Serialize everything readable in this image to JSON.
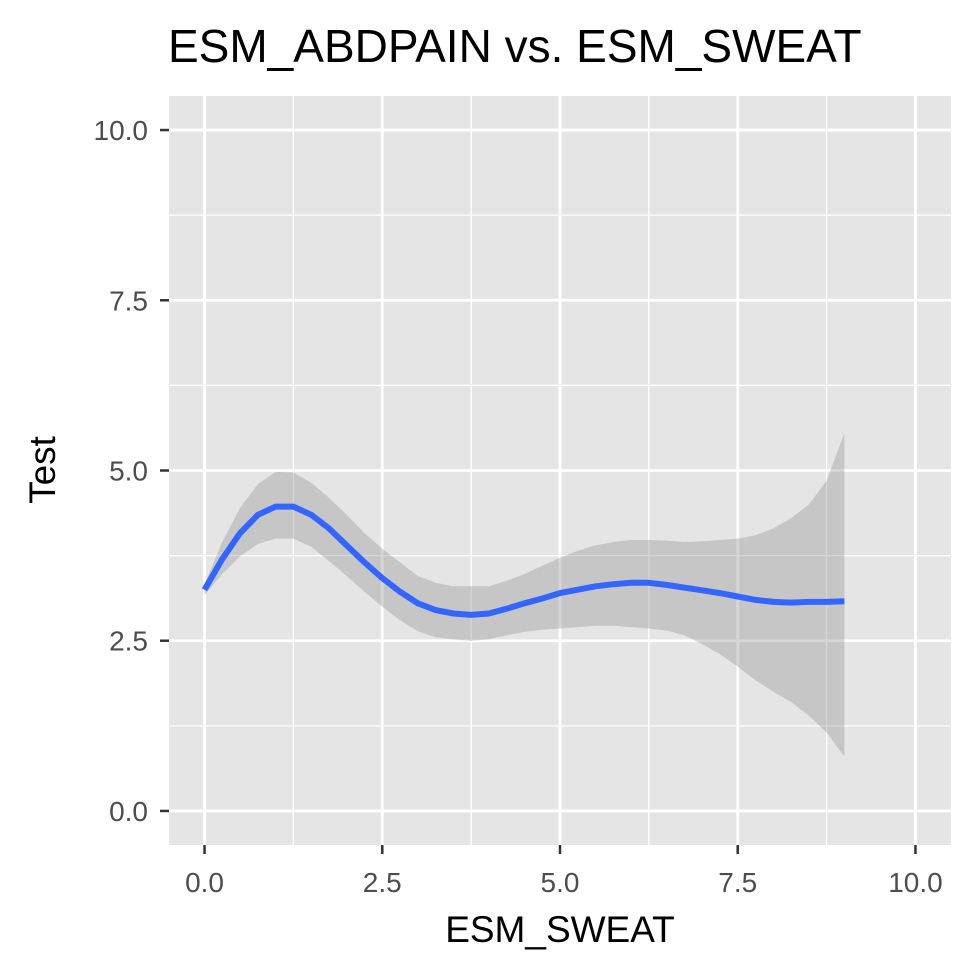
{
  "chart_data": {
    "type": "line",
    "title": "ESM_ABDPAIN vs. ESM_SWEAT",
    "xlabel": "ESM_SWEAT",
    "ylabel": "Test",
    "xlim": [
      -0.5,
      10.5
    ],
    "ylim": [
      -0.5,
      10.5
    ],
    "x_ticks": [
      0.0,
      2.5,
      5.0,
      7.5,
      10.0
    ],
    "y_ticks": [
      0.0,
      2.5,
      5.0,
      7.5,
      10.0
    ],
    "x_tick_labels": [
      "0.0",
      "2.5",
      "5.0",
      "7.5",
      "10.0"
    ],
    "y_tick_labels": [
      "0.0",
      "2.5",
      "5.0",
      "7.5",
      "10.0"
    ],
    "grid": true,
    "legend": "none",
    "series": [
      {
        "x": [
          0.0,
          0.25,
          0.5,
          0.75,
          1.0,
          1.25,
          1.5,
          1.75,
          2.0,
          2.25,
          2.5,
          2.75,
          3.0,
          3.25,
          3.5,
          3.75,
          4.0,
          4.25,
          4.5,
          4.75,
          5.0,
          5.25,
          5.5,
          5.75,
          6.0,
          6.25,
          6.5,
          6.75,
          7.0,
          7.25,
          7.5,
          7.75,
          8.0,
          8.25,
          8.5,
          8.75,
          9.0
        ],
        "y": [
          3.25,
          3.7,
          4.08,
          4.35,
          4.47,
          4.47,
          4.35,
          4.15,
          3.9,
          3.65,
          3.42,
          3.22,
          3.05,
          2.95,
          2.9,
          2.88,
          2.9,
          2.97,
          3.05,
          3.12,
          3.2,
          3.25,
          3.3,
          3.33,
          3.35,
          3.35,
          3.32,
          3.28,
          3.24,
          3.2,
          3.15,
          3.1,
          3.07,
          3.06,
          3.07,
          3.07,
          3.08
        ],
        "ci_lower": [
          3.17,
          3.48,
          3.74,
          3.92,
          4.0,
          4.0,
          3.88,
          3.67,
          3.45,
          3.22,
          3.0,
          2.8,
          2.64,
          2.55,
          2.52,
          2.5,
          2.52,
          2.58,
          2.63,
          2.66,
          2.68,
          2.7,
          2.72,
          2.72,
          2.7,
          2.68,
          2.65,
          2.58,
          2.45,
          2.3,
          2.12,
          1.92,
          1.75,
          1.6,
          1.4,
          1.15,
          0.8
        ],
        "ci_upper": [
          3.33,
          3.95,
          4.45,
          4.8,
          4.98,
          4.97,
          4.82,
          4.6,
          4.35,
          4.08,
          3.85,
          3.65,
          3.45,
          3.35,
          3.3,
          3.3,
          3.3,
          3.38,
          3.48,
          3.6,
          3.72,
          3.82,
          3.9,
          3.95,
          3.98,
          3.98,
          3.97,
          3.95,
          3.96,
          3.98,
          4.0,
          4.05,
          4.15,
          4.3,
          4.5,
          4.85,
          5.55
        ]
      }
    ],
    "colors": {
      "line": "#3366FF",
      "ribbon": "#999999",
      "panel": "#E5E5E5",
      "grid": "#FFFFFF",
      "tick_text": "#4D4D4D",
      "axis_ticks": "#333333"
    }
  }
}
